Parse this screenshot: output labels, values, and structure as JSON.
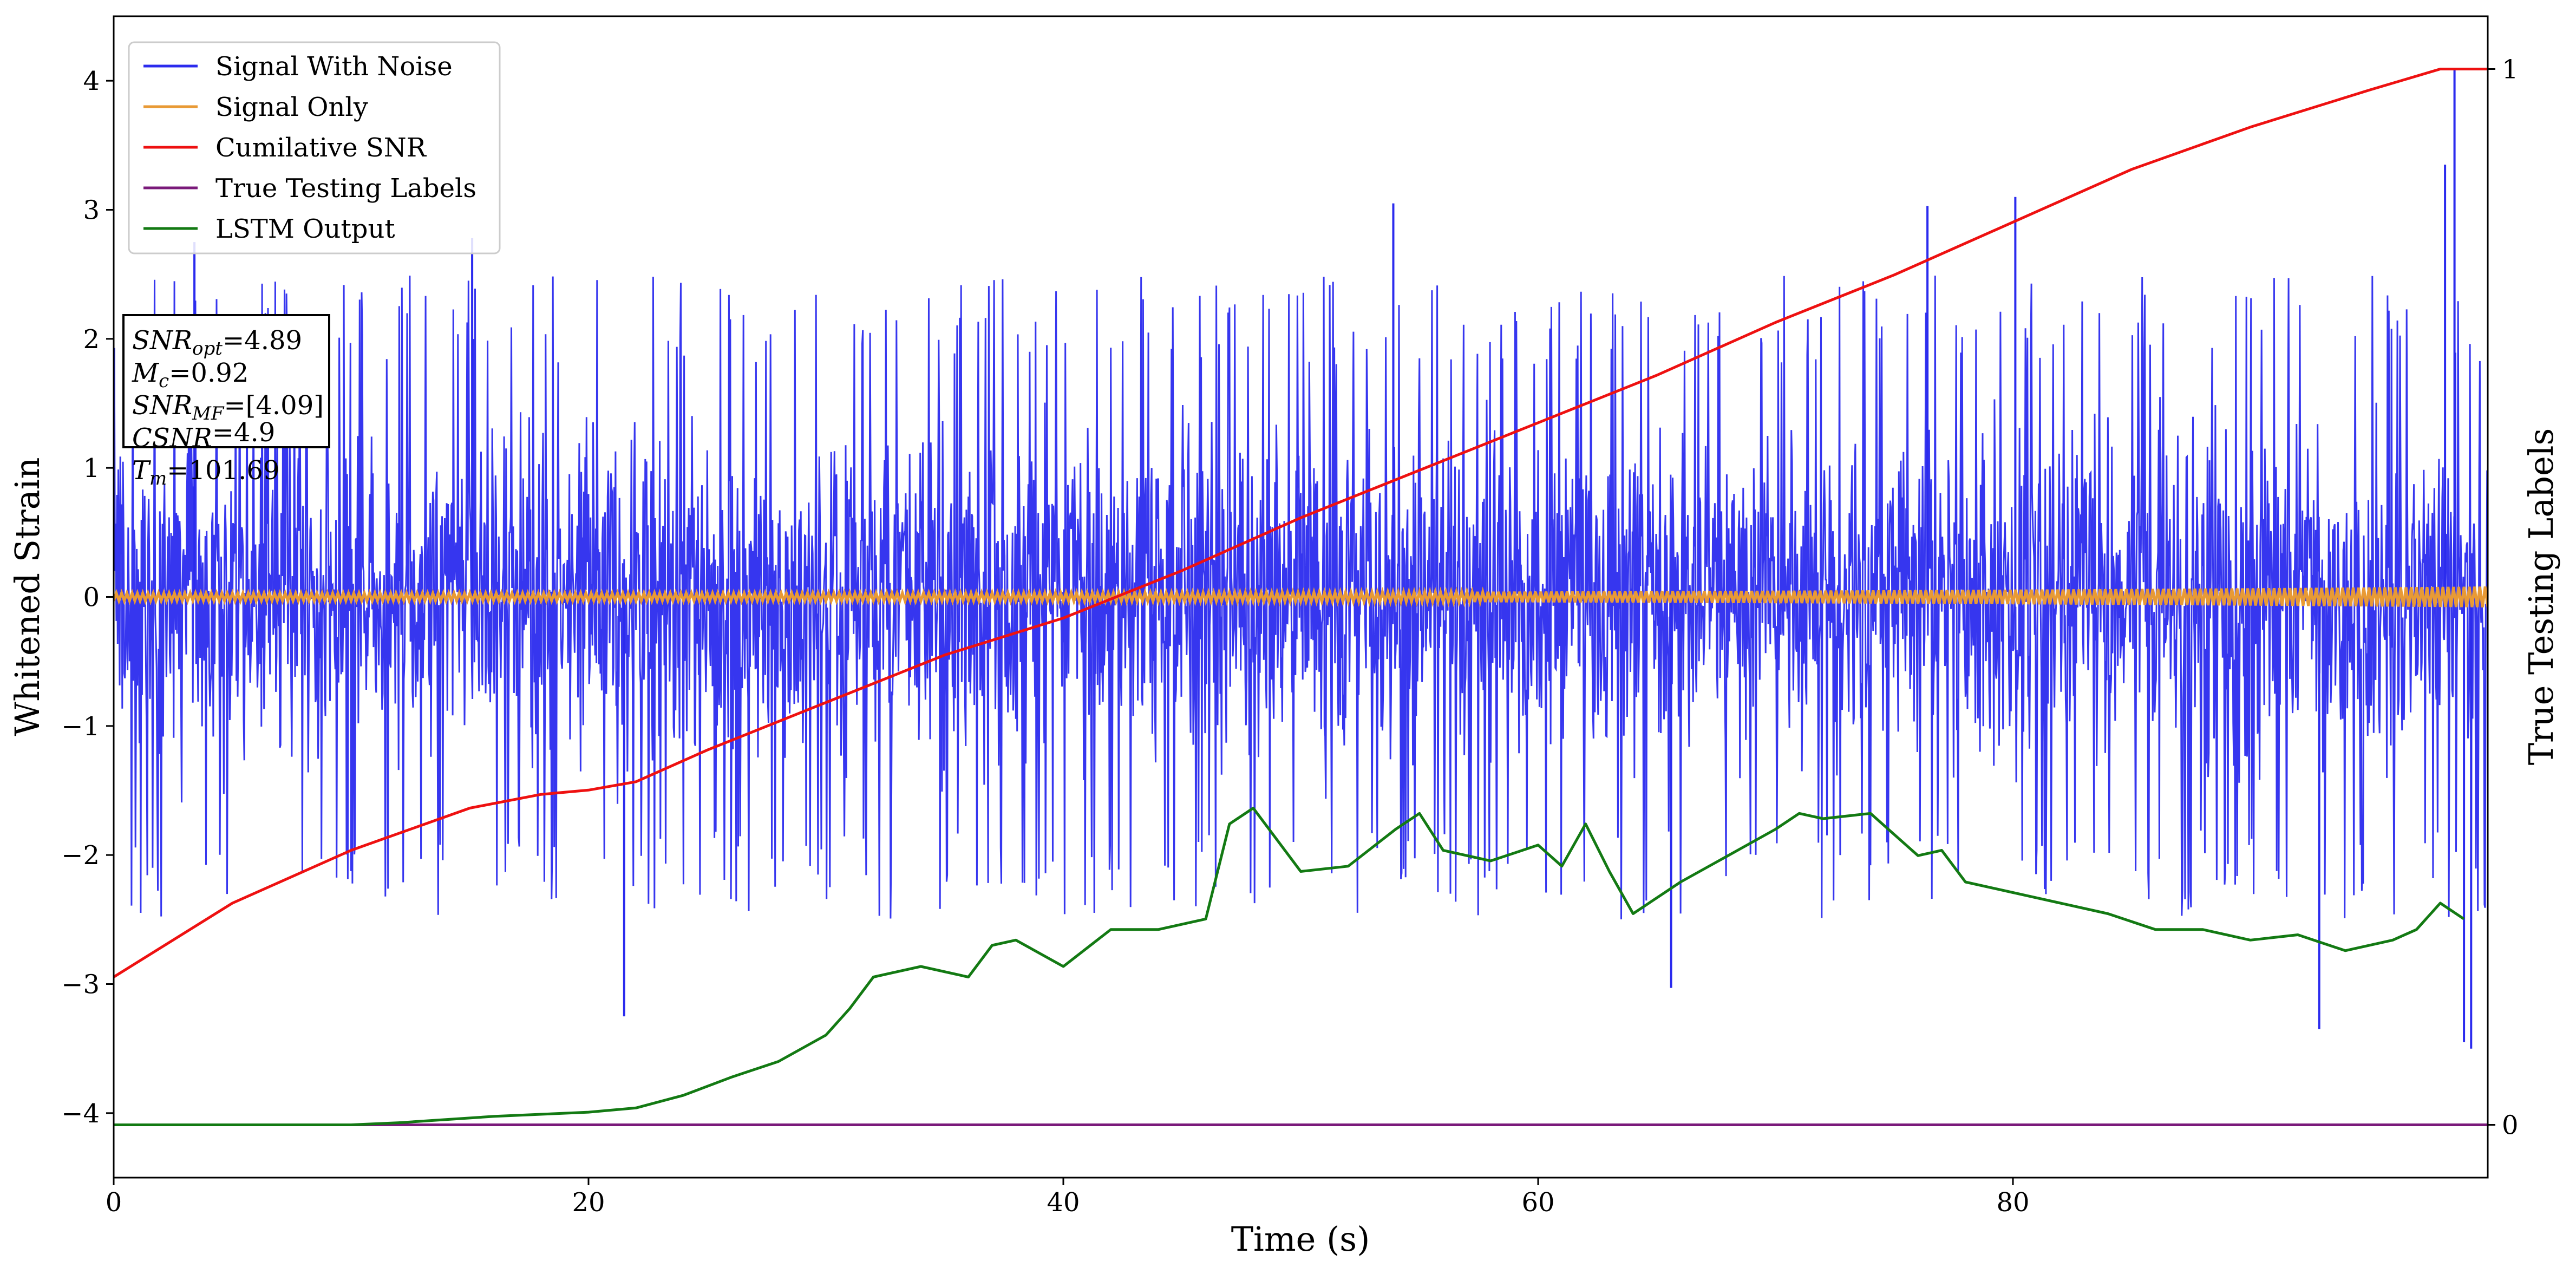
{
  "chart_data": {
    "type": "line",
    "xlabel": "Time (s)",
    "ylabel": "Whitened Strain",
    "y2label": "True Testing Labels",
    "xlim": [
      0,
      100
    ],
    "ylim": [
      -4.5,
      4.5
    ],
    "y2lim": [
      -0.05,
      1.05
    ],
    "x_ticks": [
      0,
      20,
      40,
      60,
      80
    ],
    "y_ticks": [
      -4,
      -3,
      -2,
      -1,
      0,
      1,
      2,
      3,
      4
    ],
    "y2_ticks": [
      0,
      1
    ],
    "grid": false,
    "legend_position": "top-left",
    "legend": [
      "Signal With Noise",
      "Signal Only",
      "Cumilative SNR",
      "True Testing Labels",
      "LSTM Output"
    ],
    "annotation": {
      "lines": [
        {
          "main": "SNR",
          "sub": "opt",
          "value": "=4.89"
        },
        {
          "main": "M",
          "sub": "c",
          "value": "=0.92"
        },
        {
          "main": "SNR",
          "sub": "MF",
          "value": "=[4.09]"
        },
        {
          "main": "CSNR",
          "sub": "",
          "value": "=4.9"
        },
        {
          "main": "T",
          "sub": "m",
          "value": "=101.69"
        }
      ]
    },
    "series": [
      {
        "name": "Signal With Noise",
        "color": "#2b2bee",
        "axis": "left",
        "kind": "noise",
        "envelope_upper": 2.5,
        "envelope_lower": -2.5,
        "spikes": [
          [
            3.4,
            2.75
          ],
          [
            15.1,
            2.78
          ],
          [
            21.5,
            -3.25
          ],
          [
            53.9,
            3.05
          ],
          [
            65.6,
            -3.03
          ],
          [
            76.4,
            3.03
          ],
          [
            80.1,
            3.1
          ],
          [
            92.9,
            -3.35
          ],
          [
            98.2,
            3.35
          ],
          [
            98.6,
            4.1
          ],
          [
            99.0,
            -3.45
          ],
          [
            99.3,
            -3.5
          ]
        ]
      },
      {
        "name": "Signal Only",
        "color": "#e89a35",
        "axis": "left",
        "kind": "band",
        "amplitude_start": 0.03,
        "amplitude_end": 0.08
      },
      {
        "name": "Cumilative SNR",
        "color": "#ee1111",
        "axis": "right",
        "x": [
          0,
          5,
          10,
          15,
          18,
          20,
          22,
          25,
          30,
          35,
          40,
          45,
          50,
          55,
          60,
          65,
          70,
          75,
          80,
          85,
          90,
          95,
          98,
          100
        ],
        "values": [
          0.14,
          0.21,
          0.26,
          0.3,
          0.313,
          0.317,
          0.325,
          0.355,
          0.4,
          0.445,
          0.48,
          0.525,
          0.575,
          0.62,
          0.665,
          0.71,
          0.76,
          0.805,
          0.855,
          0.905,
          0.945,
          0.98,
          1.0,
          1.0
        ]
      },
      {
        "name": "True Testing Labels",
        "color": "#7a1a7a",
        "axis": "right",
        "x": [
          0,
          100
        ],
        "values": [
          0,
          0
        ]
      },
      {
        "name": "LSTM Output",
        "color": "#137a13",
        "axis": "right",
        "x": [
          0,
          10,
          12,
          14,
          16,
          18,
          20,
          22,
          24,
          26,
          28,
          30,
          31,
          32,
          34,
          36,
          37,
          38,
          40,
          42,
          44,
          46,
          47,
          48,
          50,
          52,
          54,
          55,
          56,
          58,
          60,
          61,
          62,
          63,
          64,
          66,
          68,
          70,
          71,
          72,
          74,
          76,
          77,
          78,
          80,
          82,
          84,
          86,
          88,
          90,
          92,
          94,
          96,
          97,
          98,
          99
        ],
        "values": [
          0,
          0,
          0.002,
          0.005,
          0.008,
          0.01,
          0.012,
          0.016,
          0.028,
          0.045,
          0.06,
          0.085,
          0.11,
          0.14,
          0.15,
          0.14,
          0.17,
          0.175,
          0.15,
          0.185,
          0.185,
          0.195,
          0.285,
          0.3,
          0.24,
          0.245,
          0.28,
          0.295,
          0.26,
          0.25,
          0.265,
          0.245,
          0.285,
          0.24,
          0.2,
          0.23,
          0.255,
          0.28,
          0.295,
          0.29,
          0.295,
          0.255,
          0.26,
          0.23,
          0.22,
          0.21,
          0.2,
          0.185,
          0.185,
          0.175,
          0.18,
          0.165,
          0.175,
          0.185,
          0.21,
          0.195
        ]
      }
    ]
  }
}
